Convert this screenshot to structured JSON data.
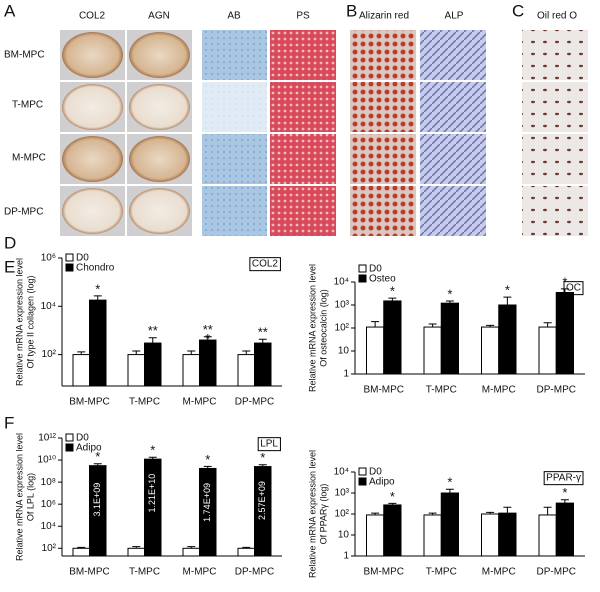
{
  "panels": {
    "A": {
      "letter": "A",
      "columns": [
        "COL2",
        "AGN",
        "AB",
        "PS"
      ],
      "rows": [
        "BM-MPC",
        "T-MPC",
        "M-MPC",
        "DP-MPC"
      ]
    },
    "B": {
      "letter": "B",
      "columns": [
        "Alizarin red",
        "ALP"
      ]
    },
    "C": {
      "letter": "C",
      "columns": [
        "Oil red O"
      ]
    }
  },
  "chart_data": [
    {
      "type": "bar",
      "panel": "D",
      "label_box": "COL2",
      "log_scale": true,
      "y_label": [
        "Relative mRNA expression level",
        "Of type II collagen (log)"
      ],
      "categories": [
        "BM-MPC",
        "T-MPC",
        "M-MPC",
        "DP-MPC"
      ],
      "ylim": [
        5,
        1000000
      ],
      "yticks": [
        {
          "value": 100,
          "label": "10²"
        },
        {
          "value": 10000,
          "label": "10⁴"
        },
        {
          "value": 1000000,
          "label": "10⁶"
        }
      ],
      "series": [
        {
          "name": "D0",
          "color": "#ffffff",
          "values": [
            100,
            100,
            100,
            100
          ],
          "errors": [
            30,
            40,
            40,
            40
          ]
        },
        {
          "name": "Chondro",
          "color": "#000000",
          "values": [
            18000,
            300,
            400,
            300
          ],
          "errors": [
            9000,
            200,
            150,
            130
          ],
          "annotations": [
            [
              "*"
            ],
            [
              "**"
            ],
            [
              "**",
              "*"
            ],
            [
              "**"
            ]
          ]
        }
      ]
    },
    {
      "type": "bar",
      "panel": "E",
      "label_box": "OC",
      "log_scale": true,
      "y_label": [
        "Relative mRNA expression level",
        "Of osteocalcin (log)"
      ],
      "categories": [
        "BM-MPC",
        "T-MPC",
        "M-MPC",
        "DP-MPC"
      ],
      "ylim": [
        1,
        10000
      ],
      "yticks": [
        1,
        10,
        {
          "value": 100,
          "label": "10²"
        },
        {
          "value": 1000,
          "label": "10³"
        },
        {
          "value": 10000,
          "label": "10⁴"
        }
      ],
      "series": [
        {
          "name": "D0",
          "color": "#ffffff",
          "values": [
            110,
            110,
            110,
            110
          ],
          "errors": [
            80,
            40,
            20,
            60
          ]
        },
        {
          "name": "Osteo",
          "color": "#000000",
          "values": [
            1500,
            1200,
            1000,
            3500
          ],
          "errors": [
            500,
            300,
            1200,
            1500
          ],
          "annotations": [
            [
              "*"
            ],
            [
              "*"
            ],
            [
              "*"
            ],
            [
              "*"
            ]
          ]
        }
      ]
    },
    {
      "type": "bar",
      "panel": "F",
      "label_box": "LPL",
      "log_scale": true,
      "y_label": [
        "Relative mRNA expression level",
        "Of LPL (log)"
      ],
      "categories": [
        "BM-MPC",
        "T-MPC",
        "M-MPC",
        "DP-MPC"
      ],
      "ylim": [
        20,
        1000000000000
      ],
      "yticks": [
        {
          "value": 100,
          "label": "10²"
        },
        {
          "value": 10000,
          "label": "10⁴"
        },
        {
          "value": 1000000,
          "label": "10⁶"
        },
        {
          "value": 100000000,
          "label": "10⁸"
        },
        {
          "value": 10000000000,
          "label": "10¹⁰"
        },
        {
          "value": 1000000000000,
          "label": "10¹²"
        }
      ],
      "series": [
        {
          "name": "D0",
          "color": "#ffffff",
          "values": [
            100,
            100,
            100,
            100
          ],
          "errors": [
            20,
            40,
            40,
            20
          ]
        },
        {
          "name": "Adipo",
          "color": "#000000",
          "values": [
            3100000000,
            12100000000,
            1740000000,
            2570000000
          ],
          "errors": [
            1500000000,
            6000000000,
            900000000,
            1200000000
          ],
          "value_labels": [
            "3.1E+09",
            "1.21E+10",
            "1.74E+09",
            "2.57E+09"
          ],
          "annotations": [
            [
              "*"
            ],
            [
              "*"
            ],
            [
              "*"
            ],
            [
              "*"
            ]
          ]
        }
      ]
    },
    {
      "type": "bar",
      "label_box": "PPAR-γ",
      "log_scale": true,
      "y_label": [
        "Relative mRNA expression level",
        "Of PPARγ (log)"
      ],
      "categories": [
        "BM-MPC",
        "T-MPC",
        "M-MPC",
        "DP-MPC"
      ],
      "ylim": [
        1,
        10000
      ],
      "yticks": [
        1,
        10,
        {
          "value": 100,
          "label": "10²"
        },
        {
          "value": 1000,
          "label": "10³"
        },
        {
          "value": 10000,
          "label": "10⁴"
        }
      ],
      "series": [
        {
          "name": "D0",
          "color": "#ffffff",
          "values": [
            90,
            90,
            100,
            90
          ],
          "errors": [
            20,
            20,
            20,
            120
          ]
        },
        {
          "name": "Adipo",
          "color": "#000000",
          "values": [
            270,
            1000,
            110,
            330
          ],
          "errors": [
            50,
            500,
            100,
            150
          ],
          "annotations": [
            [
              "*"
            ],
            [
              "*"
            ],
            [],
            [
              "*"
            ]
          ]
        }
      ]
    }
  ]
}
